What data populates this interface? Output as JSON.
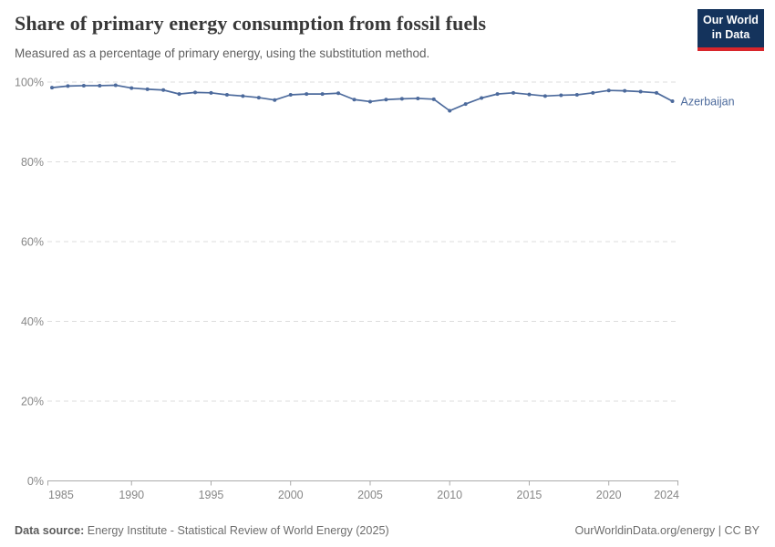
{
  "header": {
    "title": "Share of primary energy consumption from fossil fuels",
    "subtitle": "Measured as a percentage of primary energy, using the substitution method."
  },
  "logo": {
    "line1": "Our World",
    "line2": "in Data",
    "bg_color": "#14335c",
    "accent_color": "#d8252b"
  },
  "chart_data": {
    "type": "line",
    "title": "Share of primary energy consumption from fossil fuels",
    "subtitle": "Measured as a percentage of primary energy, using the substitution method.",
    "unit": "%",
    "x": [
      1985,
      1986,
      1987,
      1988,
      1989,
      1990,
      1991,
      1992,
      1993,
      1994,
      1995,
      1996,
      1997,
      1998,
      1999,
      2000,
      2001,
      2002,
      2003,
      2004,
      2005,
      2006,
      2007,
      2008,
      2009,
      2010,
      2011,
      2012,
      2013,
      2014,
      2015,
      2016,
      2017,
      2018,
      2019,
      2020,
      2021,
      2022,
      2023,
      2024
    ],
    "series": [
      {
        "name": "Azerbaijan",
        "color": "#4C6A9C",
        "values": [
          98.6,
          99.0,
          99.1,
          99.1,
          99.2,
          98.5,
          98.2,
          98.0,
          97.0,
          97.4,
          97.3,
          96.8,
          96.5,
          96.1,
          95.5,
          96.8,
          97.0,
          97.0,
          97.2,
          95.6,
          95.1,
          95.6,
          95.8,
          95.9,
          95.7,
          92.8,
          94.5,
          96.0,
          97.0,
          97.3,
          96.9,
          96.5,
          96.7,
          96.8,
          97.3,
          97.9,
          97.8,
          97.6,
          97.3,
          95.2
        ]
      }
    ],
    "ylim": [
      0,
      100
    ],
    "yticks": [
      0,
      20,
      40,
      60,
      80,
      100
    ],
    "ytick_suffix": "%",
    "xticks": [
      1985,
      1990,
      1995,
      2000,
      2005,
      2010,
      2015,
      2020,
      2024
    ],
    "grid": true,
    "legend_position": "end-of-line",
    "entity_label": "Azerbaijan",
    "grid_color": "#dddddd",
    "axis_color": "#aaaaaa",
    "tick_label_color": "#878787"
  },
  "footer": {
    "source_label": "Data source:",
    "source_text": "Energy Institute - Statistical Review of World Energy (2025)",
    "credit": "OurWorldinData.org/energy | CC BY"
  }
}
